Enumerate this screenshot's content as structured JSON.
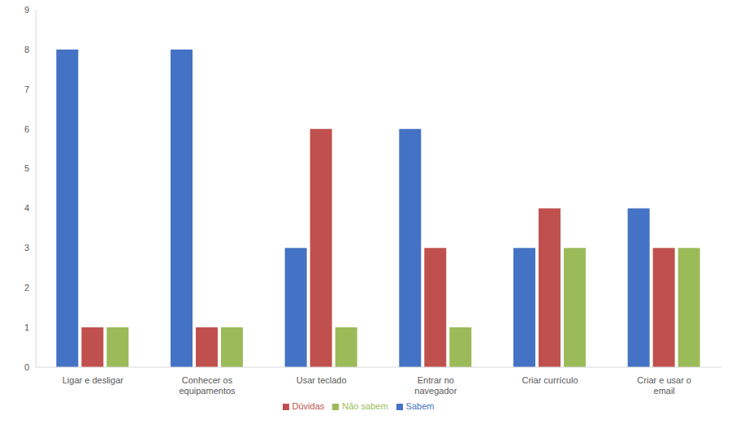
{
  "chart_data": {
    "type": "bar",
    "categories": [
      "Ligar e desligar",
      "Conhecer os equipamentos",
      "Usar teclado",
      "Entrar no navegador",
      "Criar currículo",
      "Criar e usar o email"
    ],
    "series": [
      {
        "name": "Sabem",
        "color": "#4472c4",
        "values": [
          8,
          8,
          3,
          6,
          3,
          4
        ]
      },
      {
        "name": "Dúvidas",
        "color": "#c0504d",
        "values": [
          1,
          1,
          6,
          3,
          4,
          3
        ]
      },
      {
        "name": "Não sabem",
        "color": "#9bbb59",
        "values": [
          1,
          1,
          1,
          1,
          3,
          3
        ]
      }
    ],
    "ylim": [
      0,
      9
    ],
    "yticks": [
      0,
      1,
      2,
      3,
      4,
      5,
      6,
      7,
      8,
      9
    ],
    "grid": false,
    "legend": "bottom"
  }
}
